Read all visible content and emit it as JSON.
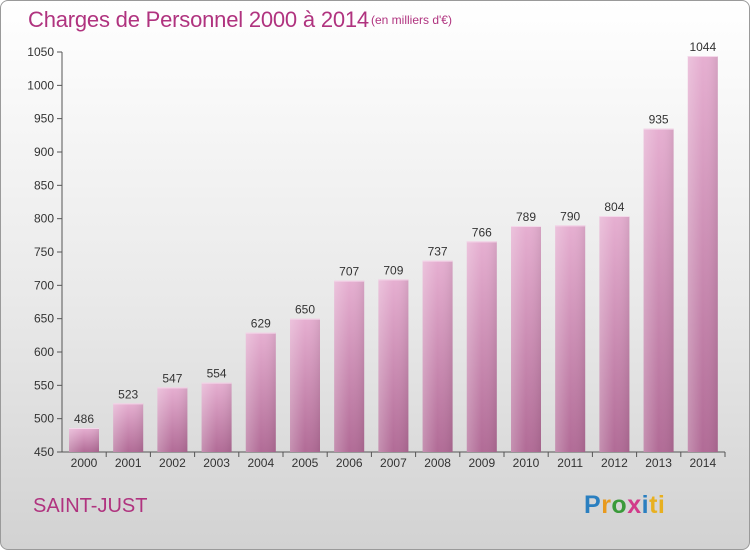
{
  "title": "Charges de Personnel 2000 à 2014",
  "subtitle": "(en milliers d'€)",
  "town": "SAINT-JUST",
  "logo": {
    "p1": "P",
    "p2": "r",
    "p3": "o",
    "p4": "x",
    "p5": "i",
    "p6": "ti"
  },
  "colors": {
    "title": "#b0337f",
    "bar_top": "#e2a6cc",
    "bar_bottom": "#b7709a",
    "axis": "#555555"
  },
  "chart_data": {
    "type": "bar",
    "categories": [
      "2000",
      "2001",
      "2002",
      "2003",
      "2004",
      "2005",
      "2006",
      "2007",
      "2008",
      "2009",
      "2010",
      "2011",
      "2012",
      "2013",
      "2014"
    ],
    "values": [
      486,
      523,
      547,
      554,
      629,
      650,
      707,
      709,
      737,
      766,
      789,
      790,
      804,
      935,
      1044
    ],
    "ylim": [
      450,
      1050
    ],
    "yticks": [
      450,
      500,
      550,
      600,
      650,
      700,
      750,
      800,
      850,
      900,
      950,
      1000,
      1050
    ],
    "grid": false,
    "data_labels": true
  }
}
